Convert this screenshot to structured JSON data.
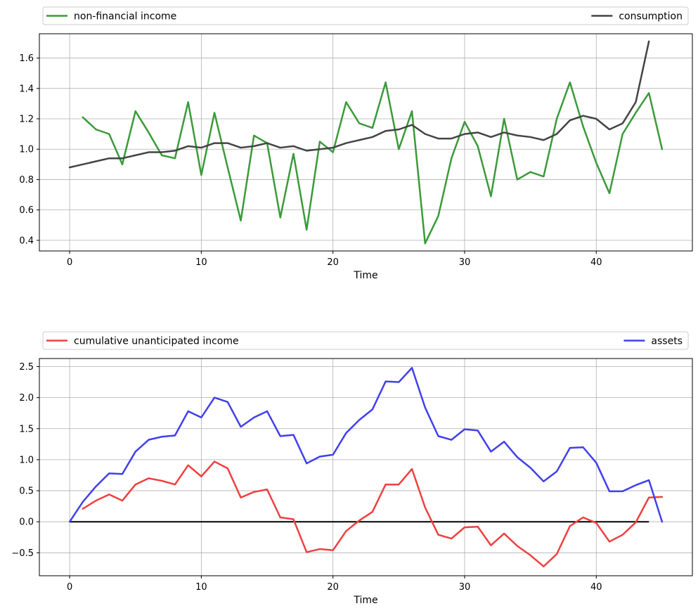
{
  "chart_data": [
    {
      "type": "line",
      "xlabel": "Time",
      "ylabel": "",
      "xlim": [
        -2.3,
        47.3
      ],
      "ylim": [
        0.33,
        1.76
      ],
      "xticks": [
        0,
        10,
        20,
        30,
        40
      ],
      "yticks": [
        0.4,
        0.6,
        0.8,
        1.0,
        1.2,
        1.4,
        1.6
      ],
      "xtick_labels": [
        "0",
        "10",
        "20",
        "30",
        "40"
      ],
      "ytick_labels": [
        "0.4",
        "0.6",
        "0.8",
        "1.0",
        "1.2",
        "1.4",
        "1.6"
      ],
      "grid": true,
      "legend": "above-plot",
      "series": [
        {
          "name": "non-financial income",
          "color": "#3a9a3a",
          "x_start": 1,
          "values": [
            1.21,
            1.13,
            1.1,
            0.9,
            1.25,
            1.11,
            0.96,
            0.94,
            1.31,
            0.83,
            1.24,
            0.88,
            0.53,
            1.09,
            1.04,
            0.55,
            0.97,
            0.47,
            1.05,
            0.98,
            1.31,
            1.17,
            1.14,
            1.44,
            1.0,
            1.25,
            0.38,
            0.56,
            0.94,
            1.18,
            1.02,
            0.69,
            1.2,
            0.8,
            0.85,
            0.82,
            1.2,
            1.44,
            1.15,
            0.91,
            0.71,
            1.1,
            1.24,
            1.37,
            1.0
          ]
        },
        {
          "name": "consumption",
          "color": "#444444",
          "x_start": 0,
          "values": [
            0.88,
            0.9,
            0.92,
            0.94,
            0.94,
            0.96,
            0.98,
            0.98,
            0.99,
            1.02,
            1.01,
            1.04,
            1.04,
            1.01,
            1.02,
            1.04,
            1.01,
            1.02,
            0.99,
            1.0,
            1.01,
            1.04,
            1.06,
            1.08,
            1.12,
            1.13,
            1.16,
            1.1,
            1.07,
            1.07,
            1.1,
            1.11,
            1.08,
            1.11,
            1.09,
            1.08,
            1.06,
            1.1,
            1.19,
            1.22,
            1.2,
            1.13,
            1.17,
            1.31,
            1.71
          ]
        }
      ]
    },
    {
      "type": "line",
      "xlabel": "Time",
      "ylabel": "",
      "xlim": [
        -2.3,
        47.3
      ],
      "ylim": [
        -0.87,
        2.63
      ],
      "xticks": [
        0,
        10,
        20,
        30,
        40
      ],
      "yticks": [
        -0.5,
        0.0,
        0.5,
        1.0,
        1.5,
        2.0,
        2.5
      ],
      "xtick_labels": [
        "0",
        "10",
        "20",
        "30",
        "40"
      ],
      "ytick_labels": [
        "−0.5",
        "0.0",
        "0.5",
        "1.0",
        "1.5",
        "2.0",
        "2.5"
      ],
      "grid": true,
      "legend": "above-plot",
      "hline": {
        "y": 0,
        "x_from": 0,
        "x_to": 44,
        "color": "#000000"
      },
      "series": [
        {
          "name": "cumulative unanticipated income",
          "color": "#ee4040",
          "x_start": 1,
          "values": [
            0.21,
            0.34,
            0.44,
            0.34,
            0.6,
            0.7,
            0.66,
            0.6,
            0.91,
            0.73,
            0.97,
            0.86,
            0.39,
            0.48,
            0.52,
            0.07,
            0.04,
            -0.49,
            -0.44,
            -0.46,
            -0.15,
            0.02,
            0.16,
            0.6,
            0.6,
            0.85,
            0.23,
            -0.21,
            -0.27,
            -0.09,
            -0.08,
            -0.38,
            -0.19,
            -0.39,
            -0.54,
            -0.72,
            -0.52,
            -0.07,
            0.07,
            -0.02,
            -0.32,
            -0.21,
            -0.01,
            0.39,
            0.4
          ]
        },
        {
          "name": "assets",
          "color": "#4040ee",
          "x_start": 0,
          "values": [
            0.0,
            0.32,
            0.57,
            0.78,
            0.77,
            1.13,
            1.32,
            1.37,
            1.39,
            1.78,
            1.68,
            2.0,
            1.93,
            1.53,
            1.68,
            1.78,
            1.38,
            1.4,
            0.94,
            1.05,
            1.08,
            1.43,
            1.64,
            1.81,
            2.26,
            2.25,
            2.48,
            1.84,
            1.38,
            1.32,
            1.49,
            1.47,
            1.13,
            1.29,
            1.04,
            0.87,
            0.65,
            0.81,
            1.19,
            1.2,
            0.95,
            0.49,
            0.49,
            0.59,
            0.67,
            0.0
          ]
        }
      ]
    }
  ]
}
